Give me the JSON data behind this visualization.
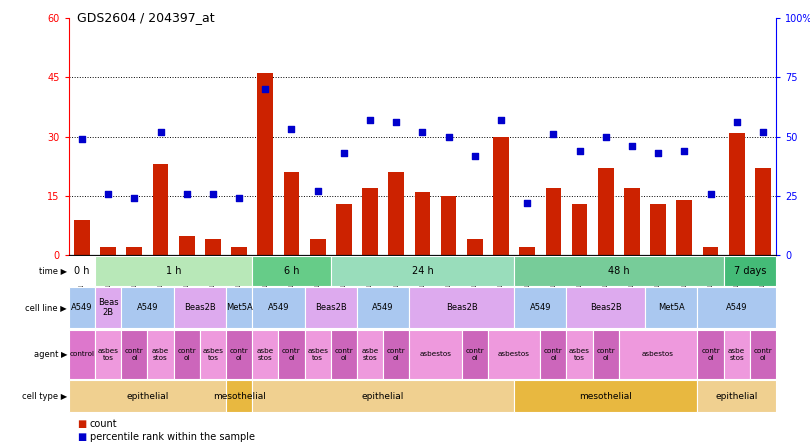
{
  "title": "GDS2604 / 204397_at",
  "samples": [
    "GSM139646",
    "GSM139660",
    "GSM139640",
    "GSM139647",
    "GSM139654",
    "GSM139661",
    "GSM139760",
    "GSM139669",
    "GSM139641",
    "GSM139648",
    "GSM139655",
    "GSM139663",
    "GSM139643",
    "GSM139653",
    "GSM139656",
    "GSM139657",
    "GSM139664",
    "GSM139644",
    "GSM139645",
    "GSM139652",
    "GSM139659",
    "GSM139666",
    "GSM139667",
    "GSM139668",
    "GSM139761",
    "GSM139642",
    "GSM139649"
  ],
  "counts": [
    9,
    2,
    2,
    23,
    5,
    4,
    2,
    46,
    21,
    4,
    13,
    17,
    21,
    16,
    15,
    4,
    30,
    2,
    17,
    13,
    22,
    17,
    13,
    14,
    2,
    31,
    22
  ],
  "percentiles": [
    49,
    26,
    24,
    52,
    26,
    26,
    24,
    70,
    53,
    27,
    43,
    57,
    56,
    52,
    50,
    42,
    57,
    22,
    51,
    44,
    50,
    46,
    43,
    44,
    26,
    56,
    52
  ],
  "time_groups": [
    {
      "label": "0 h",
      "start": 0,
      "end": 1,
      "color": "#ffffff"
    },
    {
      "label": "1 h",
      "start": 1,
      "end": 7,
      "color": "#b8e8b8"
    },
    {
      "label": "6 h",
      "start": 7,
      "end": 10,
      "color": "#66cc88"
    },
    {
      "label": "24 h",
      "start": 10,
      "end": 17,
      "color": "#99ddbb"
    },
    {
      "label": "48 h",
      "start": 17,
      "end": 25,
      "color": "#77cc99"
    },
    {
      "label": "7 days",
      "start": 25,
      "end": 27,
      "color": "#44bb77"
    }
  ],
  "cell_line_groups": [
    {
      "label": "A549",
      "start": 0,
      "end": 1,
      "color": "#aac8f0"
    },
    {
      "label": "Beas\n2B",
      "start": 1,
      "end": 2,
      "color": "#ddaaee"
    },
    {
      "label": "A549",
      "start": 2,
      "end": 4,
      "color": "#aac8f0"
    },
    {
      "label": "Beas2B",
      "start": 4,
      "end": 6,
      "color": "#ddaaee"
    },
    {
      "label": "Met5A",
      "start": 6,
      "end": 7,
      "color": "#aac8f0"
    },
    {
      "label": "A549",
      "start": 7,
      "end": 9,
      "color": "#aac8f0"
    },
    {
      "label": "Beas2B",
      "start": 9,
      "end": 11,
      "color": "#ddaaee"
    },
    {
      "label": "A549",
      "start": 11,
      "end": 13,
      "color": "#aac8f0"
    },
    {
      "label": "Beas2B",
      "start": 13,
      "end": 17,
      "color": "#ddaaee"
    },
    {
      "label": "A549",
      "start": 17,
      "end": 19,
      "color": "#aac8f0"
    },
    {
      "label": "Beas2B",
      "start": 19,
      "end": 22,
      "color": "#ddaaee"
    },
    {
      "label": "Met5A",
      "start": 22,
      "end": 24,
      "color": "#aac8f0"
    },
    {
      "label": "A549",
      "start": 24,
      "end": 27,
      "color": "#aac8f0"
    }
  ],
  "agent_groups": [
    {
      "label": "control",
      "start": 0,
      "end": 1,
      "color": "#dd77cc"
    },
    {
      "label": "asbes\ntos",
      "start": 1,
      "end": 2,
      "color": "#ee99dd"
    },
    {
      "label": "contr\nol",
      "start": 2,
      "end": 3,
      "color": "#cc66bb"
    },
    {
      "label": "asbe\nstos",
      "start": 3,
      "end": 4,
      "color": "#ee99dd"
    },
    {
      "label": "contr\nol",
      "start": 4,
      "end": 5,
      "color": "#cc66bb"
    },
    {
      "label": "asbes\ntos",
      "start": 5,
      "end": 6,
      "color": "#ee99dd"
    },
    {
      "label": "contr\nol",
      "start": 6,
      "end": 7,
      "color": "#cc66bb"
    },
    {
      "label": "asbe\nstos",
      "start": 7,
      "end": 8,
      "color": "#ee99dd"
    },
    {
      "label": "contr\nol",
      "start": 8,
      "end": 9,
      "color": "#cc66bb"
    },
    {
      "label": "asbes\ntos",
      "start": 9,
      "end": 10,
      "color": "#ee99dd"
    },
    {
      "label": "contr\nol",
      "start": 10,
      "end": 11,
      "color": "#cc66bb"
    },
    {
      "label": "asbe\nstos",
      "start": 11,
      "end": 12,
      "color": "#ee99dd"
    },
    {
      "label": "contr\nol",
      "start": 12,
      "end": 13,
      "color": "#cc66bb"
    },
    {
      "label": "asbestos",
      "start": 13,
      "end": 15,
      "color": "#ee99dd"
    },
    {
      "label": "contr\nol",
      "start": 15,
      "end": 16,
      "color": "#cc66bb"
    },
    {
      "label": "asbestos",
      "start": 16,
      "end": 18,
      "color": "#ee99dd"
    },
    {
      "label": "contr\nol",
      "start": 18,
      "end": 19,
      "color": "#cc66bb"
    },
    {
      "label": "asbes\ntos",
      "start": 19,
      "end": 20,
      "color": "#ee99dd"
    },
    {
      "label": "contr\nol",
      "start": 20,
      "end": 21,
      "color": "#cc66bb"
    },
    {
      "label": "asbestos",
      "start": 21,
      "end": 24,
      "color": "#ee99dd"
    },
    {
      "label": "contr\nol",
      "start": 24,
      "end": 25,
      "color": "#cc66bb"
    },
    {
      "label": "asbe\nstos",
      "start": 25,
      "end": 26,
      "color": "#ee99dd"
    },
    {
      "label": "contr\nol",
      "start": 26,
      "end": 27,
      "color": "#cc66bb"
    }
  ],
  "cell_type_groups": [
    {
      "label": "epithelial",
      "start": 0,
      "end": 6,
      "color": "#f0d090"
    },
    {
      "label": "mesothelial",
      "start": 6,
      "end": 7,
      "color": "#e8b840"
    },
    {
      "label": "epithelial",
      "start": 7,
      "end": 17,
      "color": "#f0d090"
    },
    {
      "label": "mesothelial",
      "start": 17,
      "end": 24,
      "color": "#e8b840"
    },
    {
      "label": "epithelial",
      "start": 24,
      "end": 27,
      "color": "#f0d090"
    }
  ],
  "ylim_left": [
    0,
    60
  ],
  "ylim_right": [
    0,
    100
  ],
  "yticks_left": [
    0,
    15,
    30,
    45,
    60
  ],
  "yticks_right": [
    0,
    25,
    50,
    75,
    100
  ],
  "bar_color": "#cc2200",
  "dot_color": "#0000cc",
  "background_color": "#ffffff"
}
